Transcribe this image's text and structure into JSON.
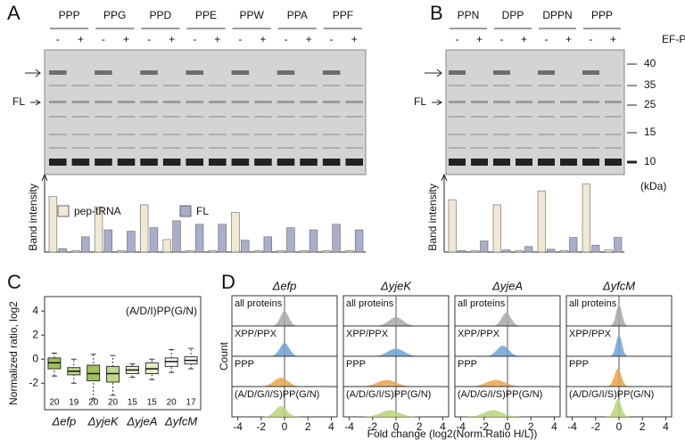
{
  "panels": {
    "a": {
      "letter": "A",
      "groups": [
        "PPP",
        "PPG",
        "PPD",
        "PPE",
        "PPW",
        "PPA",
        "PPF"
      ],
      "minus": "-",
      "plus": "+",
      "band_label": "FL"
    },
    "b": {
      "letter": "B",
      "groups": [
        "PPN",
        "DPP",
        "DPPN",
        "PPP"
      ],
      "minus": "-",
      "plus": "+",
      "ef_label": "EF-P",
      "band_label": "FL",
      "markers": [
        40,
        35,
        25,
        15,
        10
      ],
      "unit": "(kDa)"
    },
    "c": {
      "letter": "C"
    },
    "d": {
      "letter": "D"
    }
  },
  "chart_data": [
    {
      "type": "bar",
      "ylabel": "Band intensity",
      "categories": [
        null,
        null,
        null,
        null,
        null,
        null,
        null,
        null,
        null,
        null,
        null,
        null,
        null,
        null
      ],
      "series": [
        {
          "name": "pep-tRNA",
          "color": "#efe8d3",
          "values": [
            80,
            2,
            65,
            2,
            68,
            18,
            2,
            2,
            57,
            2,
            2,
            2,
            2,
            2
          ]
        },
        {
          "name": "FL",
          "color": "#a9aecb",
          "values": [
            5,
            22,
            32,
            30,
            35,
            45,
            40,
            40,
            17,
            22,
            35,
            32,
            40,
            32
          ]
        }
      ],
      "ylim": [
        0,
        100
      ]
    },
    {
      "type": "bar",
      "ylabel": "Band intensity",
      "categories": [
        null,
        null,
        null,
        null,
        null,
        null,
        null,
        null
      ],
      "series": [
        {
          "color": "#efe8d3",
          "values": [
            75,
            2,
            68,
            2,
            88,
            2,
            98,
            3
          ]
        },
        {
          "color": "#a9aecb",
          "values": [
            2,
            16,
            3,
            8,
            4,
            21,
            10,
            21
          ]
        }
      ],
      "ylim": [
        0,
        100
      ]
    },
    {
      "type": "box",
      "ylabel": "Normalized ratio, log2",
      "annotation": "(A/D/I)PP(G/N)",
      "categories": [
        "Δefp",
        "ΔyjeK",
        "ΔyjeA",
        "ΔyfcM"
      ],
      "boxes": [
        {
          "color": "#9fc15a",
          "low": -1.4,
          "q1": -0.8,
          "median": -0.3,
          "q3": 0.1,
          "high": 0.5,
          "n": 20
        },
        {
          "color": "#c2d98a",
          "low": -2.0,
          "q1": -1.3,
          "median": -1.0,
          "q3": -0.7,
          "high": 0.0,
          "n": 19
        },
        {
          "color": "#9fc15a",
          "low": -3.3,
          "q1": -1.8,
          "median": -1.2,
          "q3": -0.5,
          "high": 0.4,
          "n": 20
        },
        {
          "color": "#c2d98a",
          "low": -3.0,
          "q1": -1.9,
          "median": -1.2,
          "q3": -0.6,
          "high": 0.3,
          "n": 20
        },
        {
          "color": "#e6efc9",
          "low": -1.5,
          "q1": -1.2,
          "median": -0.9,
          "q3": -0.6,
          "high": -0.4,
          "n": 15
        },
        {
          "color": "#e6efc9",
          "low": -1.7,
          "q1": -1.2,
          "median": -0.8,
          "q3": -0.3,
          "high": 0.0,
          "n": 15
        },
        {
          "color": "#ffffff",
          "low": -1.1,
          "q1": -0.6,
          "median": -0.2,
          "q3": 0.1,
          "high": 0.8,
          "n": 20
        },
        {
          "color": "#ffffff",
          "low": -0.8,
          "q1": -0.4,
          "median": -0.1,
          "q3": 0.2,
          "high": 0.9,
          "n": 17
        }
      ],
      "ylim": [
        -4.2,
        5.2
      ],
      "yticks": [
        -2,
        0,
        2,
        4
      ]
    },
    {
      "type": "density",
      "ylabel": "Count",
      "xlabel": "Fold change (log2(Norm.Ratio H/L))",
      "row_labels": [
        "all proteins",
        "XPP/PPX",
        "PPP",
        "(A/D/G/I/S)PP(G/N)"
      ],
      "colors": [
        "#a8a8a8",
        "#6fa3d4",
        "#e8a44c",
        "#b9d57a"
      ],
      "panels": [
        {
          "title": "Δefp",
          "peaks": [
            0,
            0,
            -0.3,
            -0.3
          ],
          "widths": [
            0.35,
            0.4,
            0.6,
            0.5
          ]
        },
        {
          "title": "ΔyjeK",
          "peaks": [
            0,
            0,
            -0.8,
            -0.5
          ],
          "widths": [
            0.6,
            0.7,
            0.8,
            0.8
          ]
        },
        {
          "title": "ΔyjeA",
          "peaks": [
            -0.1,
            -0.4,
            -1,
            -1.2
          ],
          "widths": [
            0.4,
            0.5,
            0.8,
            0.8
          ]
        },
        {
          "title": "ΔyfcM",
          "peaks": [
            0,
            0,
            -0.1,
            -0.1
          ],
          "widths": [
            0.25,
            0.25,
            0.3,
            0.3
          ]
        }
      ],
      "xlim": [
        -4.5,
        4.5
      ],
      "xticks": [
        -4,
        -2,
        0,
        2,
        4
      ]
    }
  ]
}
